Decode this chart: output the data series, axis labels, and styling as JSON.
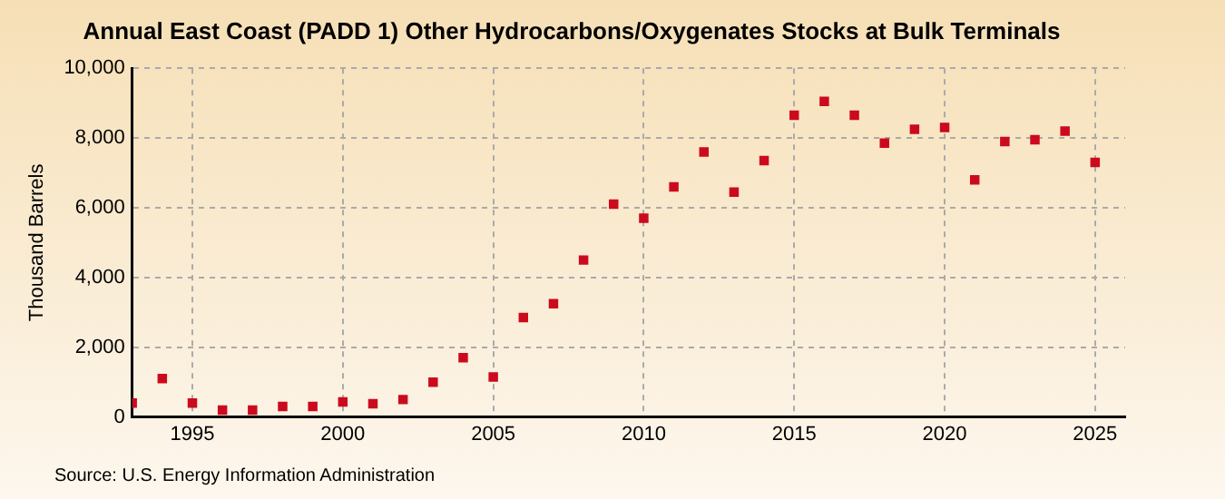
{
  "chart_data": {
    "type": "scatter",
    "title": "Annual East Coast (PADD 1) Other Hydrocarbons/Oxygenates Stocks at Bulk Terminals",
    "ylabel": "Thousand Barrels",
    "annotations": [
      "Source: U.S. Energy Information Administration"
    ],
    "x": [
      1993,
      1994,
      1995,
      1996,
      1997,
      1998,
      1999,
      2000,
      2001,
      2002,
      2003,
      2004,
      2005,
      2006,
      2007,
      2008,
      2009,
      2010,
      2011,
      2012,
      2013,
      2014,
      2015,
      2016,
      2017,
      2018,
      2019,
      2020,
      2021,
      2022,
      2023,
      2024,
      2025
    ],
    "series": [
      {
        "color": "#cc0a1e",
        "values": [
          400,
          1100,
          400,
          200,
          200,
          300,
          300,
          430,
          380,
          500,
          1000,
          1700,
          1150,
          2850,
          3250,
          4500,
          6100,
          5700,
          6600,
          7600,
          6450,
          7350,
          8650,
          9050,
          8650,
          7850,
          8250,
          8300,
          6800,
          7900,
          7950,
          8200,
          7300
        ]
      }
    ],
    "xlim": [
      1993,
      2026
    ],
    "xticks": [
      1995,
      2000,
      2005,
      2010,
      2015,
      2020,
      2025
    ],
    "ylim": [
      0,
      10000
    ],
    "yticks": [
      0,
      {
        "value": 2000,
        "label": "2,000"
      },
      {
        "value": 4000,
        "label": "4,000"
      },
      {
        "value": 6000,
        "label": "6,000"
      },
      {
        "value": 8000,
        "label": "8,000"
      },
      {
        "value": 10000,
        "label": "10,000"
      }
    ],
    "grid": true,
    "legend": false,
    "marker": "square"
  }
}
